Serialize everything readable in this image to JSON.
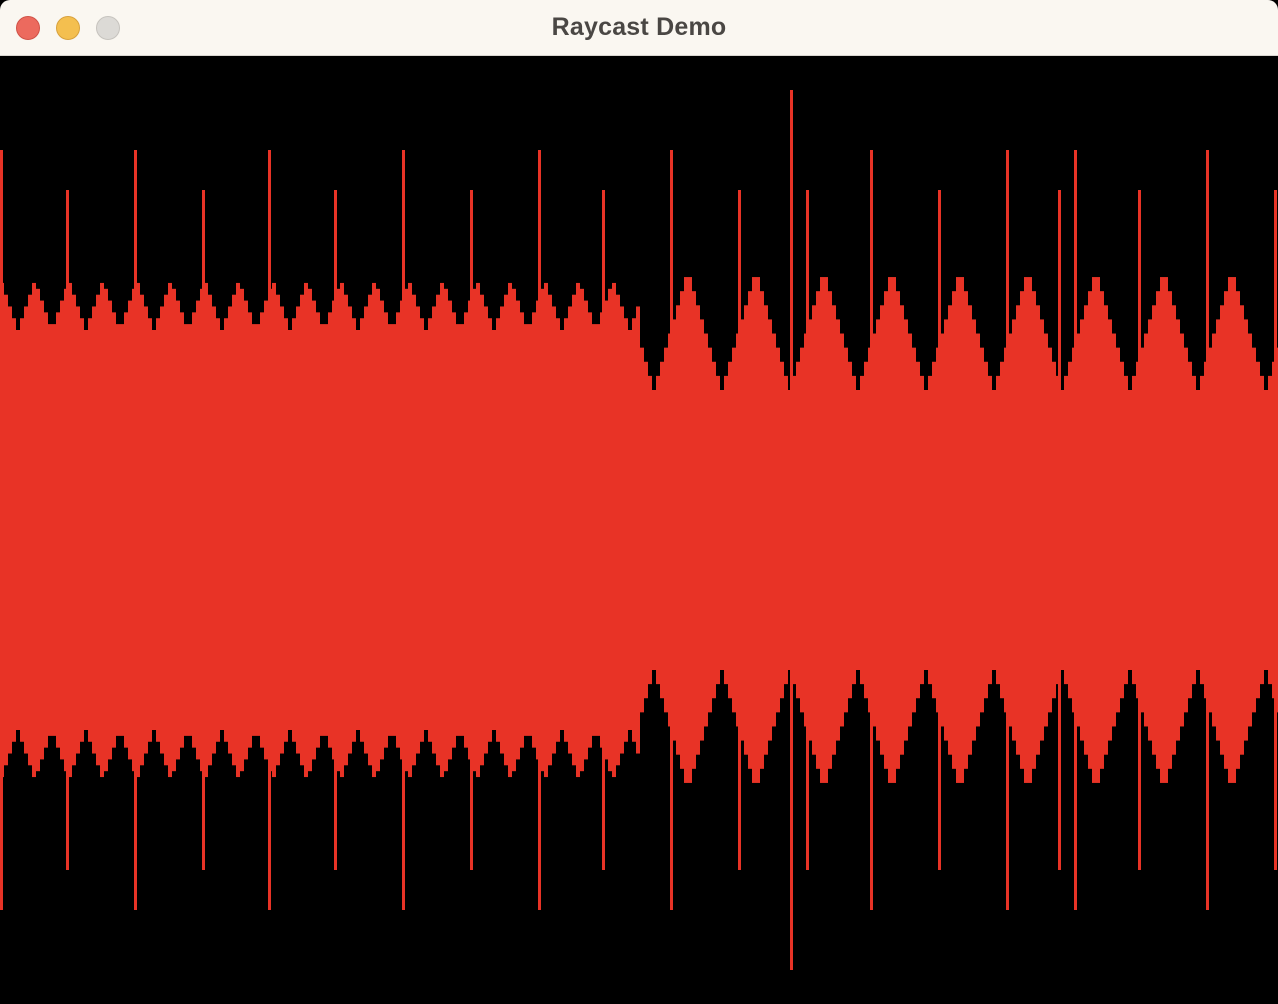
{
  "window": {
    "title": "Raycast Demo",
    "controls": {
      "close": "close-button",
      "minimize": "minimize-button",
      "zoom": "zoom-button"
    }
  },
  "scene": {
    "background_color": "#000000",
    "wall_color": "#e83326"
  }
}
